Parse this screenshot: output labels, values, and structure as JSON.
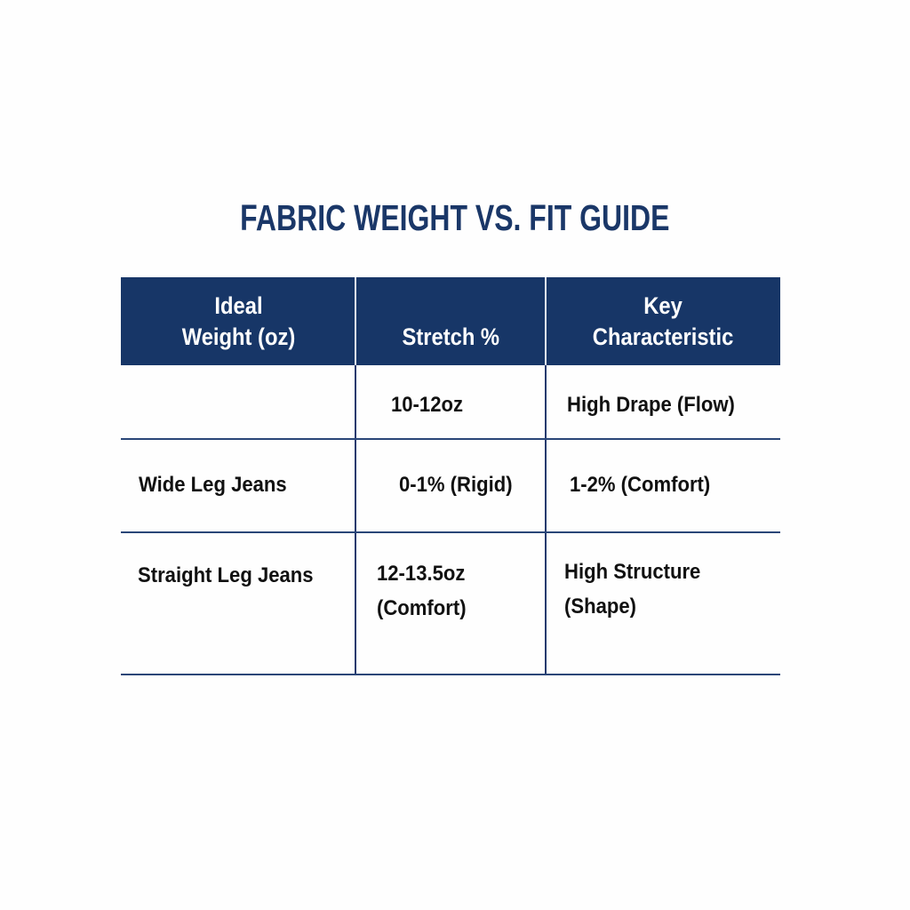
{
  "title": "FABRIC WEIGHT VS. FIT GUIDE",
  "colors": {
    "header_bg": "#173667",
    "title": "#1a3768",
    "rule": "#2a4678"
  },
  "table": {
    "headers": [
      "Ideal\nWeight (oz)",
      "Stretch %",
      "Key\nCharacteristic"
    ],
    "rows": [
      [
        "",
        "10-12oz",
        "High Drape (Flow)"
      ],
      [
        "Wide Leg Jeans",
        "0-1% (Rigid)",
        "1-2% (Comfort)"
      ],
      [
        "Straight Leg Jeans",
        "12-13.5oz\n(Comfort)",
        "High Structure\n(Shape)"
      ]
    ]
  }
}
